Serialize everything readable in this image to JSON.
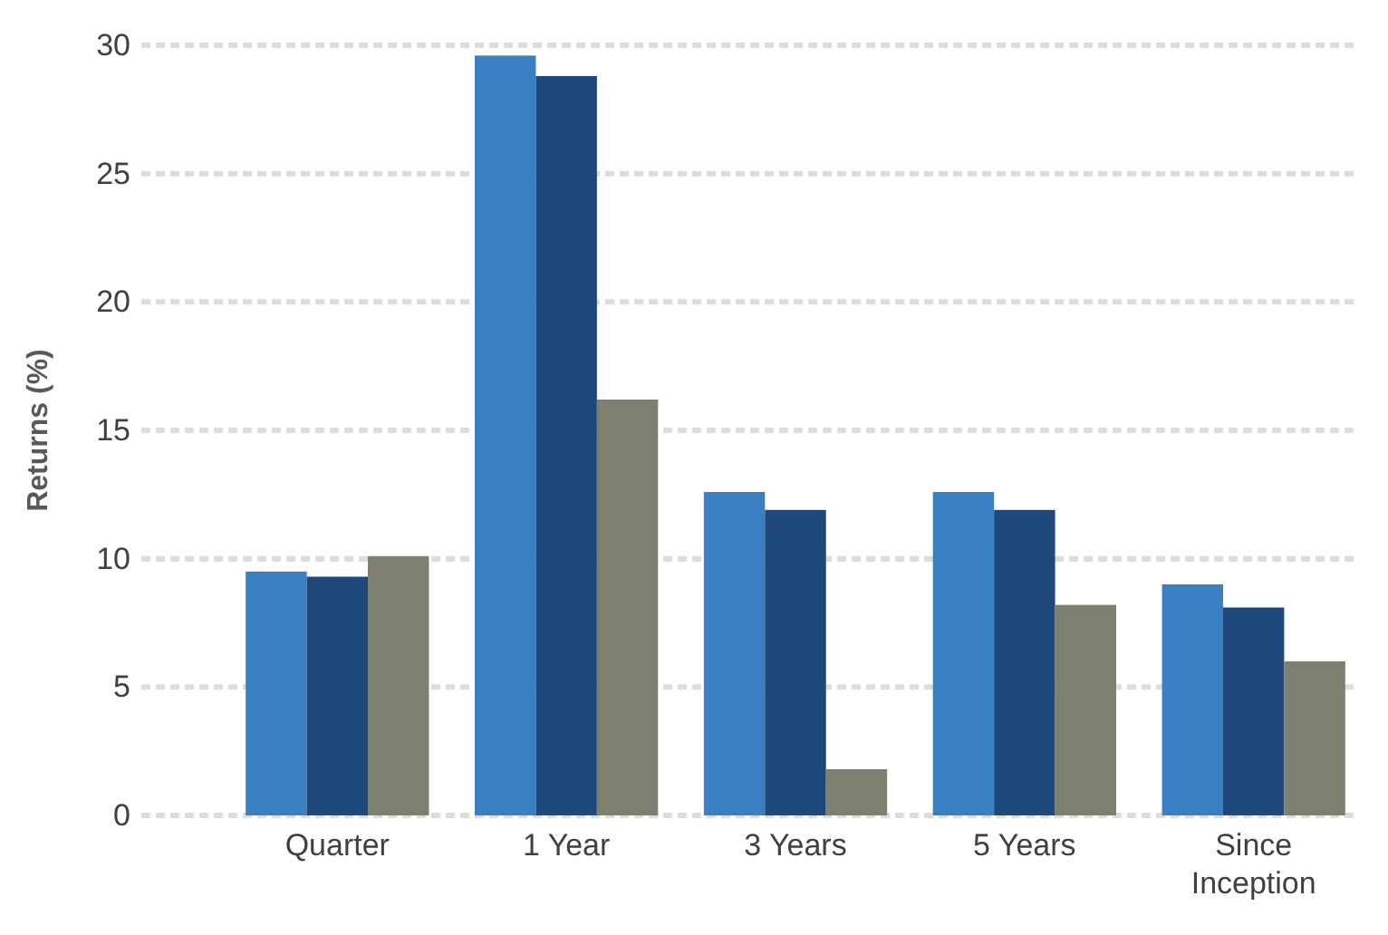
{
  "chart_data": {
    "type": "bar",
    "ylabel": "Returns (%)",
    "categories": [
      "Quarter",
      "1 Year",
      "3 Years",
      "5 Years",
      "Since Inception"
    ],
    "series": [
      {
        "color": "#3a7fc4",
        "values": [
          9.5,
          29.6,
          12.6,
          12.6,
          9.0
        ]
      },
      {
        "color": "#1f497d",
        "values": [
          9.3,
          28.8,
          11.9,
          11.9,
          8.1
        ]
      },
      {
        "color": "#7f7f6f",
        "values": [
          10.1,
          16.2,
          1.8,
          8.2,
          6.0
        ]
      }
    ],
    "ylim": [
      0,
      30
    ],
    "yticks": [
      0,
      5,
      10,
      15,
      20,
      25,
      30
    ],
    "grid": "y"
  }
}
